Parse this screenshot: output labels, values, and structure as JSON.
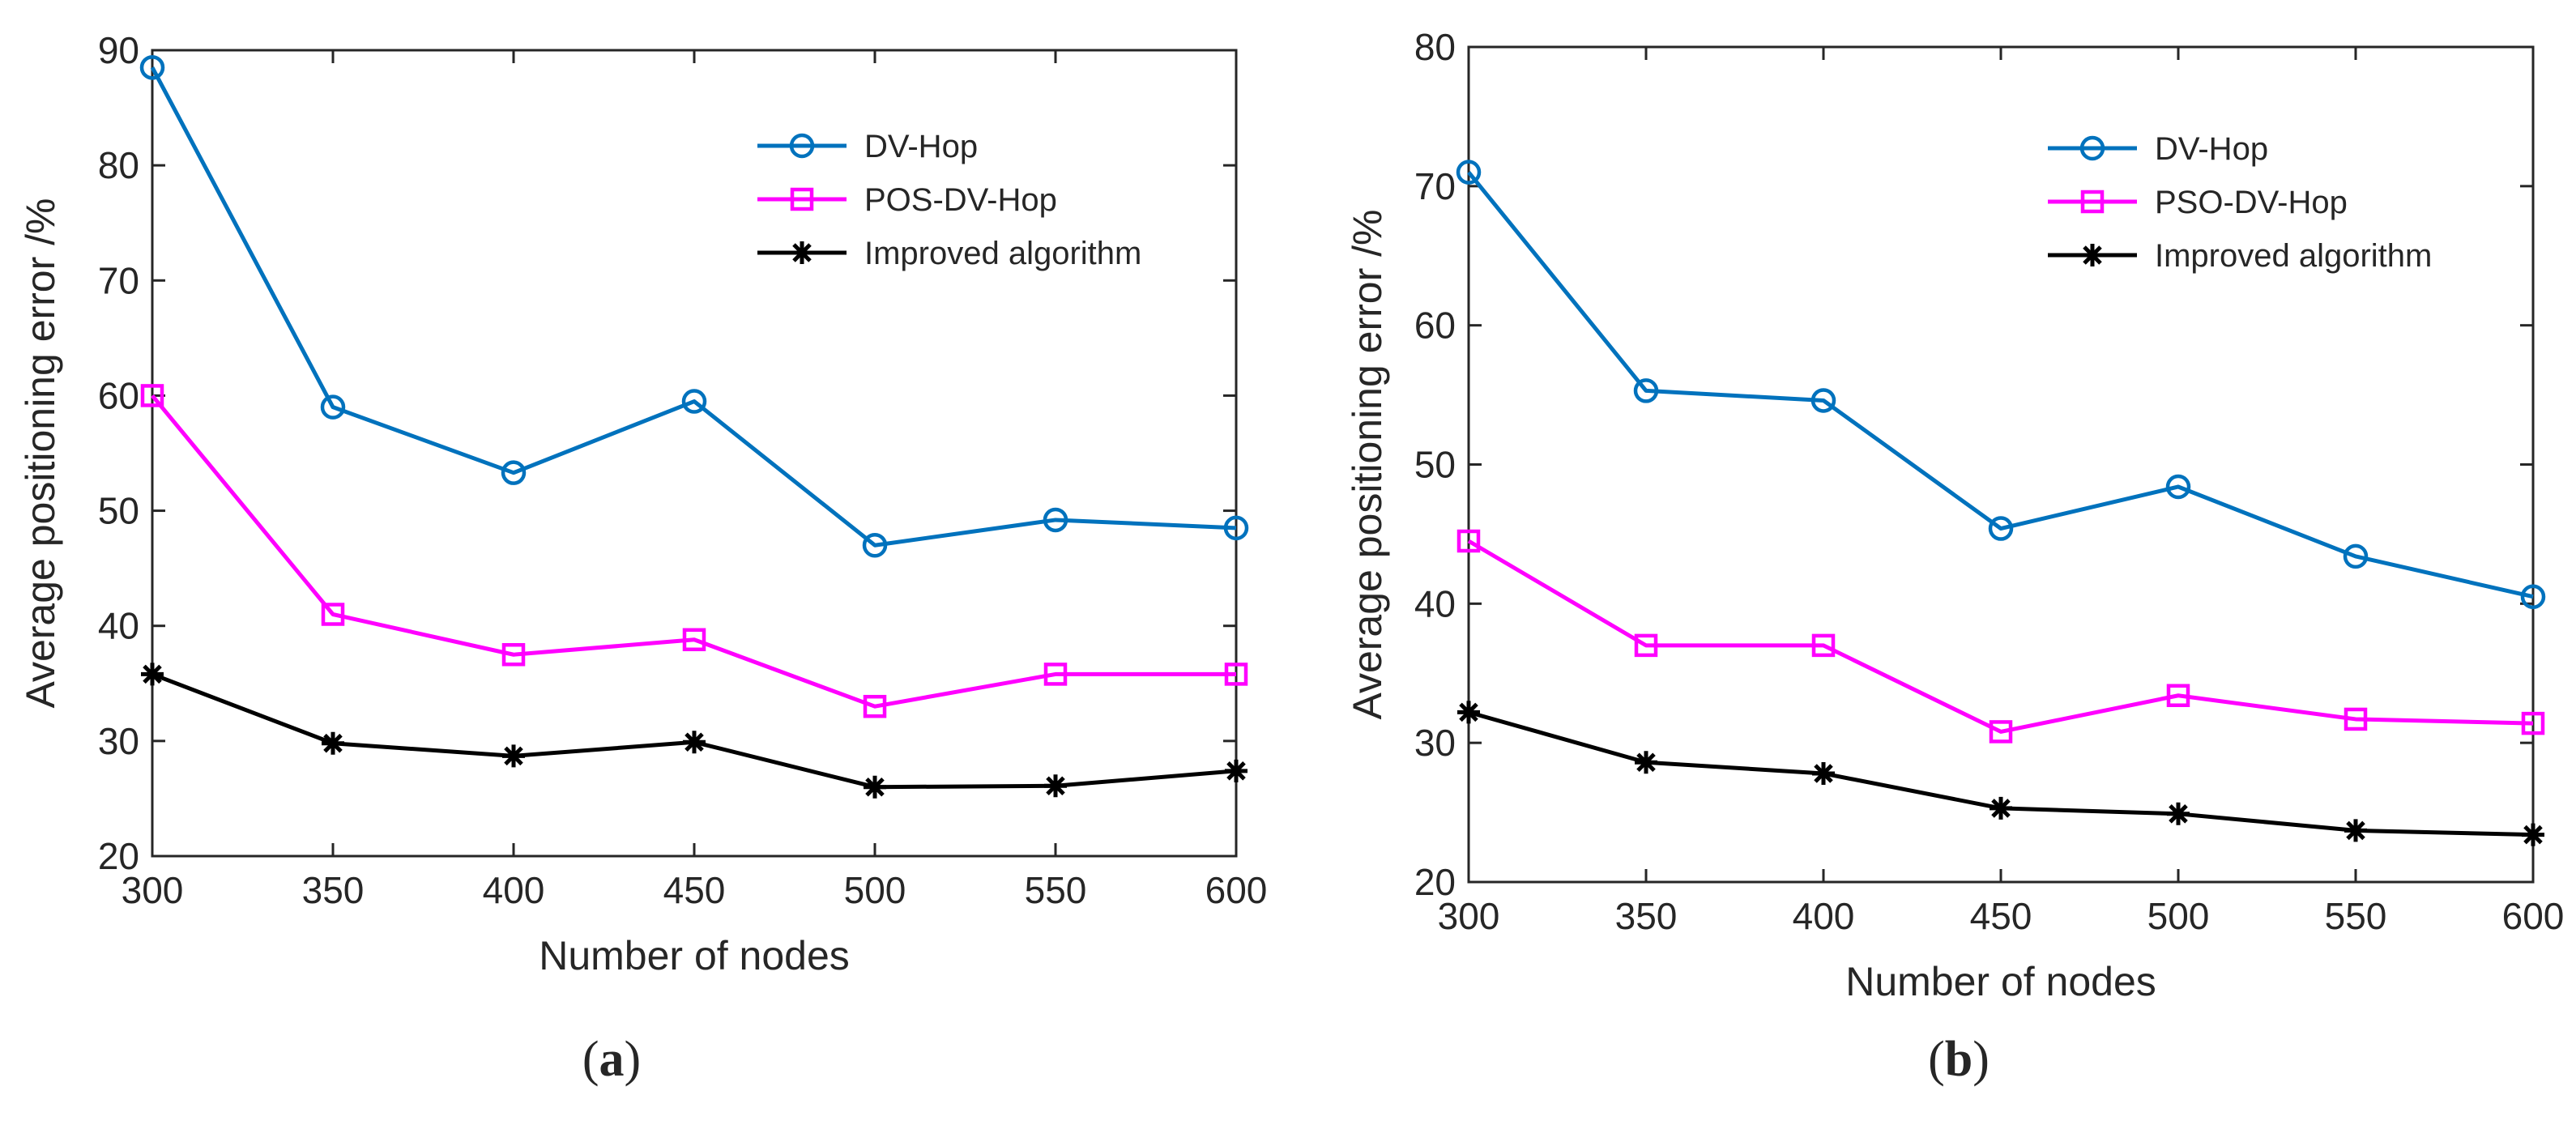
{
  "chart_data": [
    {
      "type": "line",
      "panel_label": "a",
      "caption_open": "(",
      "caption_close": ")",
      "title": "",
      "xlabel": "Number of nodes",
      "ylabel": "Average positioning error /%",
      "x": [
        300,
        350,
        400,
        450,
        500,
        550,
        600
      ],
      "xlim": [
        300,
        600
      ],
      "ylim": [
        20,
        90
      ],
      "xticks": [
        300,
        350,
        400,
        450,
        500,
        550,
        600
      ],
      "yticks": [
        20,
        30,
        40,
        50,
        60,
        70,
        80,
        90
      ],
      "grid": false,
      "legend_position": "top-right",
      "series": [
        {
          "name": "DV-Hop",
          "color": "#0072BD",
          "marker": "circle",
          "values": [
            88.5,
            59.0,
            53.3,
            59.5,
            47.0,
            49.2,
            48.5
          ]
        },
        {
          "name": "POS-DV-Hop",
          "color": "#FF00FF",
          "marker": "square",
          "values": [
            60.0,
            41.0,
            37.5,
            38.8,
            33.0,
            35.8,
            35.8
          ]
        },
        {
          "name": "Improved algorithm",
          "color": "#000000",
          "marker": "asterisk",
          "values": [
            35.8,
            29.8,
            28.7,
            29.9,
            26.0,
            26.1,
            27.4
          ]
        }
      ]
    },
    {
      "type": "line",
      "panel_label": "b",
      "caption_open": "(",
      "caption_close": ")",
      "title": "",
      "xlabel": "Number of nodes",
      "ylabel": "Average positioning error /%",
      "x": [
        300,
        350,
        400,
        450,
        500,
        550,
        600
      ],
      "xlim": [
        300,
        600
      ],
      "ylim": [
        20,
        80
      ],
      "xticks": [
        300,
        350,
        400,
        450,
        500,
        550,
        600
      ],
      "yticks": [
        20,
        30,
        40,
        50,
        60,
        70,
        80
      ],
      "grid": false,
      "legend_position": "top-right",
      "series": [
        {
          "name": "DV-Hop",
          "color": "#0072BD",
          "marker": "circle",
          "values": [
            71.0,
            55.3,
            54.6,
            45.4,
            48.4,
            43.4,
            40.5
          ]
        },
        {
          "name": "PSO-DV-Hop",
          "color": "#FF00FF",
          "marker": "square",
          "values": [
            44.5,
            37.0,
            37.0,
            30.8,
            33.4,
            31.7,
            31.4
          ]
        },
        {
          "name": "Improved algorithm",
          "color": "#000000",
          "marker": "asterisk",
          "values": [
            32.2,
            28.6,
            27.8,
            25.3,
            24.9,
            23.7,
            23.4
          ]
        }
      ]
    }
  ]
}
